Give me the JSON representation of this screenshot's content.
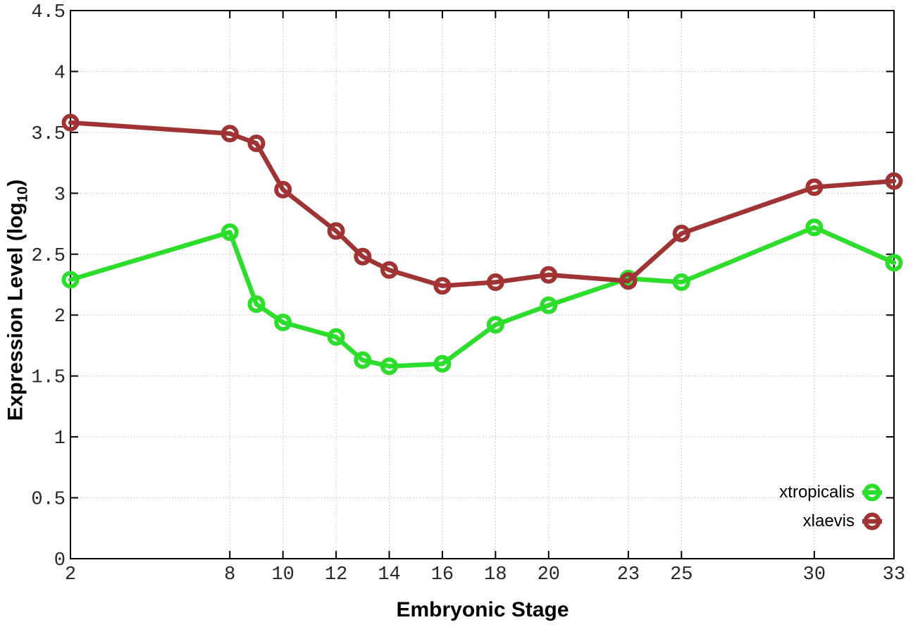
{
  "chart_data": {
    "type": "line",
    "title": "",
    "xlabel": "Embryonic Stage",
    "ylabel": "Expression Level (log10)",
    "ylabel_parts": {
      "pre": "Expression Level (log",
      "sub": "10",
      "post": ")"
    },
    "x": [
      2,
      8,
      9,
      10,
      12,
      13,
      14,
      16,
      18,
      20,
      23,
      25,
      30,
      33
    ],
    "series": [
      {
        "name": "xtropicalis",
        "color": "#2cdd2c",
        "values": [
          2.29,
          2.68,
          2.09,
          1.94,
          1.82,
          1.63,
          1.58,
          1.6,
          1.92,
          2.08,
          2.3,
          2.27,
          2.72,
          2.43
        ]
      },
      {
        "name": "xlaevis",
        "color": "#a03434",
        "values": [
          3.58,
          3.49,
          3.41,
          3.03,
          2.69,
          2.48,
          2.37,
          2.24,
          2.27,
          2.33,
          2.28,
          2.67,
          3.05,
          3.1
        ]
      }
    ],
    "xlim": [
      2,
      33
    ],
    "ylim": [
      0,
      4.5
    ],
    "xticks": [
      2,
      8,
      10,
      12,
      14,
      16,
      18,
      20,
      23,
      25,
      30,
      33
    ],
    "yticks": [
      0,
      0.5,
      1,
      1.5,
      2,
      2.5,
      3,
      3.5,
      4,
      4.5
    ],
    "grid": true,
    "grid_style": "dotted",
    "marker": "open-circle",
    "legend_position": "bottom-right-inside",
    "axis_color": "#000000",
    "grid_color": "#bcbcbc",
    "tick_label_color": "#262626"
  },
  "legend": {
    "items": [
      {
        "label": "xtropicalis"
      },
      {
        "label": "xlaevis"
      }
    ]
  }
}
